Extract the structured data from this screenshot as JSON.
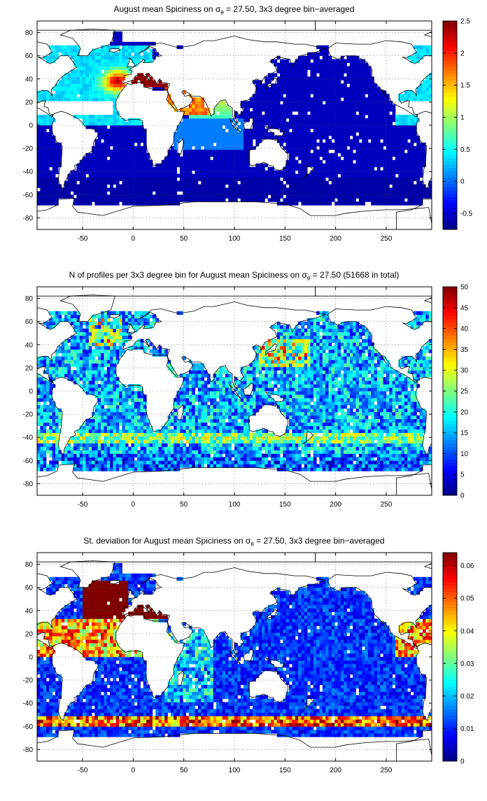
{
  "chart_data": [
    {
      "type": "heatmap",
      "title": {
        "pre": "August mean Spiciness on ",
        "sym": "σ",
        "sub": "θ",
        "post": " = 27.50, 3x3 degree bin−averaged"
      },
      "xlim": [
        -95,
        295
      ],
      "ylim": [
        -90,
        90
      ],
      "xticks": [
        -50,
        0,
        50,
        100,
        150,
        200,
        250
      ],
      "yticks": [
        -80,
        -60,
        -40,
        -20,
        0,
        20,
        40,
        60,
        80
      ],
      "colorbar": {
        "min": -0.75,
        "max": 2.5,
        "ticks": [
          -0.5,
          0,
          0.5,
          1,
          1.5,
          2,
          2.5
        ],
        "tick_labels": [
          "-0.5",
          "0",
          "0.5",
          "1",
          "1.5",
          "2",
          "2.5"
        ]
      },
      "grid": true,
      "colormap": "jet",
      "field": "spiciness",
      "bin_size_deg": 3
    },
    {
      "type": "heatmap",
      "title": {
        "pre": "N of profiles per 3x3 degree bin for August mean Spiciness on ",
        "sym": "σ",
        "sub": "θ",
        "post": " = 27.50 (51668 in total)"
      },
      "xlim": [
        -95,
        295
      ],
      "ylim": [
        -90,
        90
      ],
      "xticks": [
        -50,
        0,
        50,
        100,
        150,
        200,
        250
      ],
      "yticks": [
        -80,
        -60,
        -40,
        -20,
        0,
        20,
        40,
        60,
        80
      ],
      "colorbar": {
        "min": 0,
        "max": 50,
        "ticks": [
          0,
          5,
          10,
          15,
          20,
          25,
          30,
          35,
          40,
          45,
          50
        ],
        "tick_labels": [
          "0",
          "5",
          "10",
          "15",
          "20",
          "25",
          "30",
          "35",
          "40",
          "45",
          "50"
        ]
      },
      "grid": true,
      "colormap": "jet",
      "field": "count",
      "bin_size_deg": 3,
      "total_profiles": 51668
    },
    {
      "type": "heatmap",
      "title": {
        "pre": "St. deviation for August mean Spiciness on ",
        "sym": "σ",
        "sub": "θ",
        "post": " = 27.50, 3x3 degree bin−averaged"
      },
      "xlim": [
        -95,
        295
      ],
      "ylim": [
        -90,
        90
      ],
      "xticks": [
        -50,
        0,
        50,
        100,
        150,
        200,
        250
      ],
      "yticks": [
        -80,
        -60,
        -40,
        -20,
        0,
        20,
        40,
        60,
        80
      ],
      "colorbar": {
        "min": 0,
        "max": 0.064,
        "ticks": [
          0,
          0.01,
          0.02,
          0.03,
          0.04,
          0.05,
          0.06
        ],
        "tick_labels": [
          "0",
          "0.01",
          "0.02",
          "0.03",
          "0.04",
          "0.05",
          "0.06"
        ]
      },
      "grid": true,
      "colormap": "jet",
      "field": "stdev",
      "bin_size_deg": 3
    }
  ]
}
